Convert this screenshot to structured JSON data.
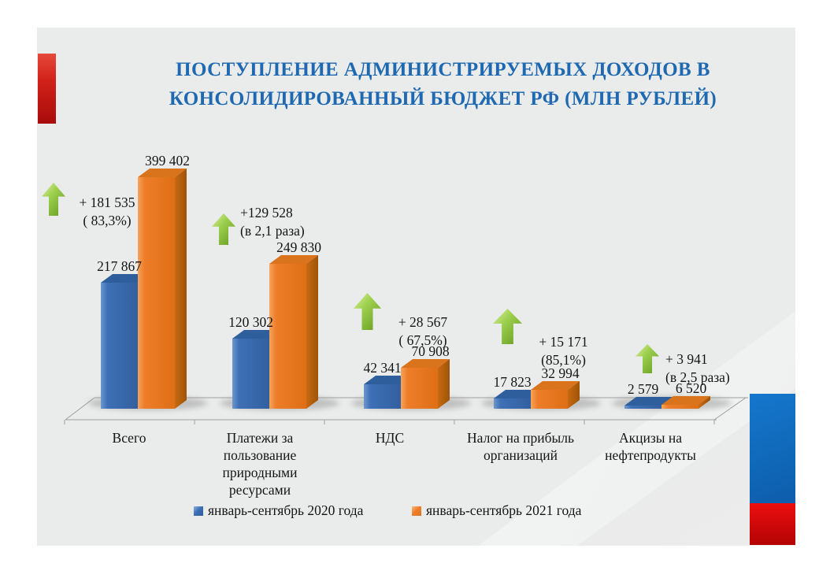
{
  "slide": {
    "title_line1": "ПОСТУПЛЕНИЕ АДМИНИСТРИРУЕМЫХ ДОХОДОВ В",
    "title_line2": "КОНСОЛИДИРОВАННЫЙ БЮДЖЕТ РФ (МЛН РУБЛЕЙ)",
    "title_color": "#1e69b1",
    "accent_red": "#d02018",
    "accent_right_blue": "#1070c4",
    "accent_right_red": "#d60808",
    "background": "#eaebeb"
  },
  "chart_data": {
    "type": "bar",
    "style": "3d-clustered-column",
    "title": "ПОСТУПЛЕНИЕ АДМИНИСТРИРУЕМЫХ ДОХОДОВ В КОНСОЛИДИРОВАННЫЙ БЮДЖЕТ РФ (МЛН РУБЛЕЙ)",
    "unit": "млн рублей",
    "categories": [
      "Всего",
      "Платежи за пользование природными ресурсами",
      "НДС",
      "Налог на прибыль организаций",
      "Акцизы на нефтепродукты"
    ],
    "series": [
      {
        "name": "январь-сентябрь 2020 года",
        "color": "#3e70b6",
        "values": [
          217867,
          120302,
          42341,
          17823,
          2579
        ],
        "labels": [
          "217 867",
          "120 302",
          "42 341",
          "17 823",
          "2 579"
        ]
      },
      {
        "name": "январь-сентябрь 2021 года",
        "color": "#ee7d2a",
        "values": [
          399402,
          249830,
          70908,
          32994,
          6520
        ],
        "labels": [
          "399 402",
          "249 830",
          "70 908",
          "32 994",
          "6 520"
        ]
      }
    ],
    "ylim": [
      0,
      399402
    ],
    "grid": false,
    "legend_position": "bottom",
    "annotations": [
      {
        "delta": "+ 181 535",
        "note": "( 83,3%)"
      },
      {
        "delta": "+129 528",
        "note": "(в 2,1 раза)"
      },
      {
        "delta": "+ 28 567",
        "note": "( 67,5%)"
      },
      {
        "delta": "+ 15 171",
        "note": "(85,1%)"
      },
      {
        "delta": "+ 3 941",
        "note": "(в 2,5 раза)"
      }
    ],
    "annotation_arrow": "green-up-arrow"
  }
}
